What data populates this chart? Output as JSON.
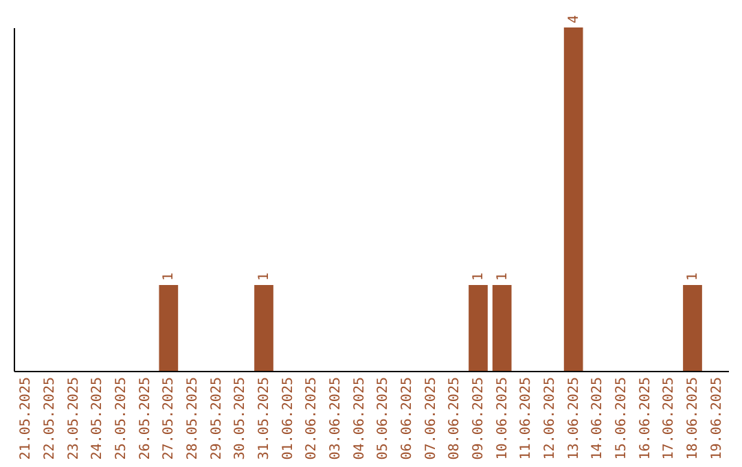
{
  "chart_data": {
    "type": "bar",
    "categories": [
      "21.05.2025",
      "22.05.2025",
      "23.05.2025",
      "24.05.2025",
      "25.05.2025",
      "26.05.2025",
      "27.05.2025",
      "28.05.2025",
      "29.05.2025",
      "30.05.2025",
      "31.05.2025",
      "01.06.2025",
      "02.06.2025",
      "03.06.2025",
      "04.06.2025",
      "05.06.2025",
      "06.06.2025",
      "07.06.2025",
      "08.06.2025",
      "09.06.2025",
      "10.06.2025",
      "11.06.2025",
      "12.06.2025",
      "13.06.2025",
      "14.06.2025",
      "15.06.2025",
      "16.06.2025",
      "17.06.2025",
      "18.06.2025",
      "19.06.2025"
    ],
    "values": [
      0,
      0,
      0,
      0,
      0,
      0,
      1,
      0,
      0,
      0,
      1,
      0,
      0,
      0,
      0,
      0,
      0,
      0,
      0,
      1,
      1,
      0,
      0,
      4,
      0,
      0,
      0,
      0,
      1,
      0
    ],
    "value_labels": [
      null,
      null,
      null,
      null,
      null,
      null,
      "1",
      null,
      null,
      null,
      "1",
      null,
      null,
      null,
      null,
      null,
      null,
      null,
      null,
      "1",
      "1",
      null,
      null,
      "4",
      null,
      null,
      null,
      null,
      "1",
      null
    ],
    "color": "#a0522d",
    "tick_labels": "x"
  }
}
